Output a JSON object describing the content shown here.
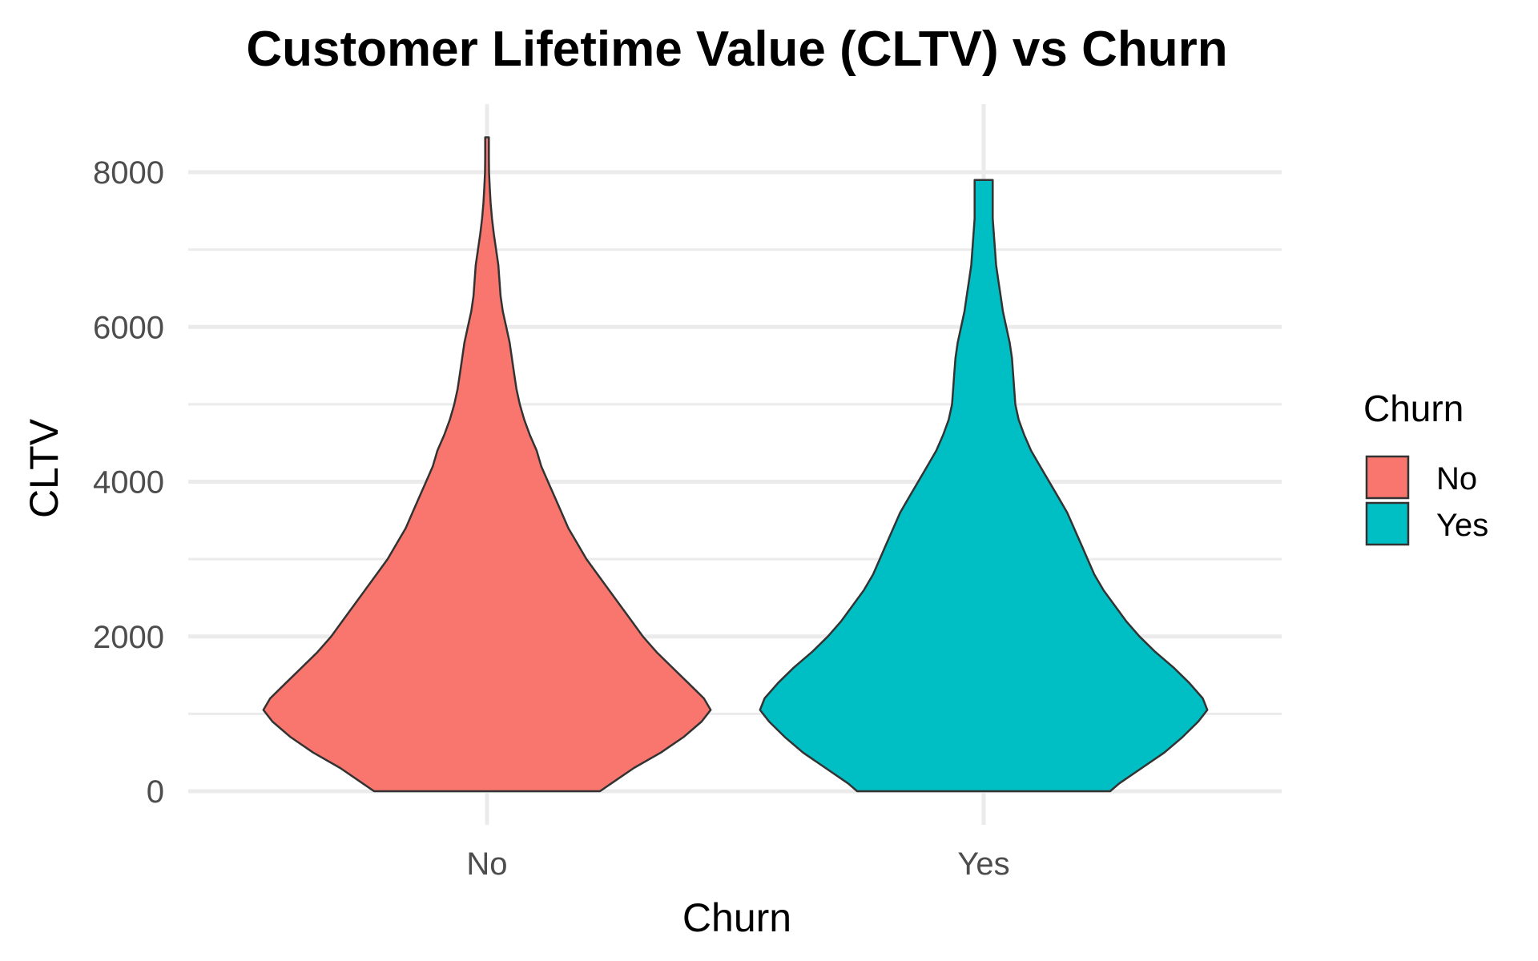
{
  "chart_data": {
    "type": "violin",
    "title": "Customer Lifetime Value (CLTV) vs Churn",
    "xlabel": "Churn",
    "ylabel": "CLTV",
    "categories": [
      "No",
      "Yes"
    ],
    "ylim": [
      0,
      8500
    ],
    "yticks": [
      0,
      2000,
      4000,
      6000,
      8000
    ],
    "yticks_labels": [
      "0",
      "2000",
      "4000",
      "6000",
      "8000"
    ],
    "grid": true,
    "legend": {
      "title": "Churn",
      "position": "right",
      "entries": [
        {
          "label": "No",
          "color": "#F8766D"
        },
        {
          "label": "Yes",
          "color": "#00BFC4"
        }
      ]
    },
    "series": [
      {
        "name": "No",
        "color": "#F8766D",
        "y_min": 0,
        "y_max": 8450,
        "profile": [
          [
            0,
            0.5
          ],
          [
            100,
            0.55
          ],
          [
            300,
            0.65
          ],
          [
            500,
            0.77
          ],
          [
            700,
            0.87
          ],
          [
            900,
            0.95
          ],
          [
            1050,
            0.99
          ],
          [
            1200,
            0.96
          ],
          [
            1400,
            0.89
          ],
          [
            1600,
            0.82
          ],
          [
            1800,
            0.75
          ],
          [
            2000,
            0.69
          ],
          [
            2200,
            0.64
          ],
          [
            2400,
            0.59
          ],
          [
            2600,
            0.54
          ],
          [
            2800,
            0.49
          ],
          [
            3000,
            0.44
          ],
          [
            3200,
            0.4
          ],
          [
            3400,
            0.36
          ],
          [
            3600,
            0.33
          ],
          [
            3800,
            0.3
          ],
          [
            4000,
            0.27
          ],
          [
            4200,
            0.24
          ],
          [
            4400,
            0.22
          ],
          [
            4600,
            0.19
          ],
          [
            4800,
            0.165
          ],
          [
            5000,
            0.145
          ],
          [
            5200,
            0.13
          ],
          [
            5400,
            0.12
          ],
          [
            5600,
            0.11
          ],
          [
            5800,
            0.1
          ],
          [
            6000,
            0.085
          ],
          [
            6200,
            0.07
          ],
          [
            6400,
            0.06
          ],
          [
            6600,
            0.055
          ],
          [
            6800,
            0.05
          ],
          [
            7000,
            0.04
          ],
          [
            7200,
            0.03
          ],
          [
            7400,
            0.022
          ],
          [
            7600,
            0.016
          ],
          [
            7800,
            0.012
          ],
          [
            8000,
            0.009
          ],
          [
            8200,
            0.008
          ],
          [
            8400,
            0.008
          ],
          [
            8450,
            0.008
          ]
        ]
      },
      {
        "name": "Yes",
        "color": "#00BFC4",
        "y_min": 0,
        "y_max": 7900,
        "profile": [
          [
            0,
            0.56
          ],
          [
            100,
            0.6
          ],
          [
            300,
            0.7
          ],
          [
            500,
            0.8
          ],
          [
            700,
            0.88
          ],
          [
            900,
            0.95
          ],
          [
            1050,
            0.99
          ],
          [
            1200,
            0.97
          ],
          [
            1400,
            0.91
          ],
          [
            1600,
            0.84
          ],
          [
            1800,
            0.76
          ],
          [
            2000,
            0.69
          ],
          [
            2200,
            0.63
          ],
          [
            2400,
            0.58
          ],
          [
            2600,
            0.53
          ],
          [
            2800,
            0.49
          ],
          [
            3000,
            0.46
          ],
          [
            3200,
            0.43
          ],
          [
            3400,
            0.4
          ],
          [
            3600,
            0.37
          ],
          [
            3800,
            0.33
          ],
          [
            4000,
            0.29
          ],
          [
            4200,
            0.25
          ],
          [
            4400,
            0.21
          ],
          [
            4600,
            0.18
          ],
          [
            4800,
            0.155
          ],
          [
            5000,
            0.14
          ],
          [
            5200,
            0.135
          ],
          [
            5400,
            0.13
          ],
          [
            5600,
            0.125
          ],
          [
            5800,
            0.115
          ],
          [
            6000,
            0.1
          ],
          [
            6200,
            0.085
          ],
          [
            6400,
            0.075
          ],
          [
            6600,
            0.065
          ],
          [
            6800,
            0.055
          ],
          [
            7000,
            0.05
          ],
          [
            7200,
            0.045
          ],
          [
            7400,
            0.04
          ],
          [
            7600,
            0.04
          ],
          [
            7800,
            0.04
          ],
          [
            7900,
            0.04
          ]
        ]
      }
    ]
  }
}
